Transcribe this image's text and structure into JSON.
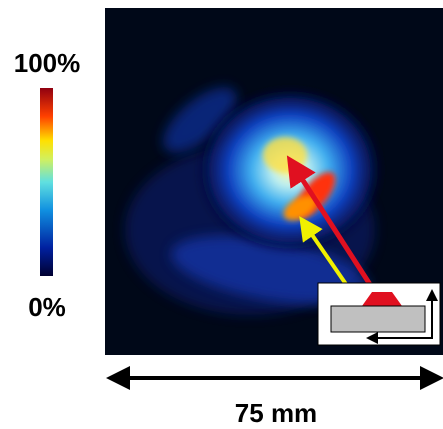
{
  "colorbar": {
    "max_label": "100%",
    "min_label": "0%"
  },
  "scale_bar": {
    "label": "75 mm"
  }
}
